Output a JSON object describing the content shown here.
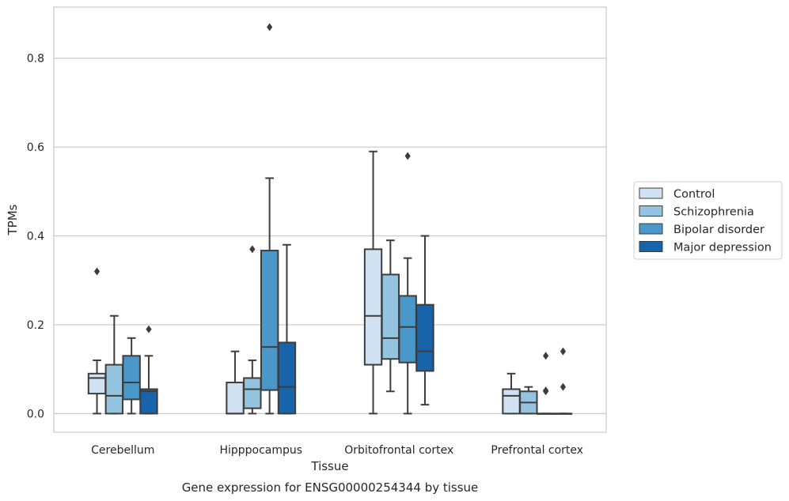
{
  "chart_data": {
    "type": "boxplot",
    "caption": "Gene expression for ENSG00000254344 by tissue",
    "xlabel": "Tissue",
    "ylabel": "TPMs",
    "ylim": [
      -0.042,
      0.915
    ],
    "yticks": [
      0.0,
      0.2,
      0.4,
      0.6,
      0.8
    ],
    "ytick_labels": [
      "0.0",
      "0.2",
      "0.4",
      "0.6",
      "0.8"
    ],
    "grid": "horizontal",
    "legend_position": "right",
    "categories": [
      "Cerebellum",
      "Hipppocampus",
      "Orbitofrontal cortex",
      "Prefrontal cortex"
    ],
    "series": [
      {
        "name": "Control",
        "color": "#d0e1f2",
        "boxes": [
          {
            "whislo": 0.0,
            "q1": 0.045,
            "med": 0.08,
            "q3": 0.09,
            "whishi": 0.12,
            "fliers": [
              0.32
            ]
          },
          {
            "whislo": 0.0,
            "q1": 0.0,
            "med": 0.0,
            "q3": 0.07,
            "whishi": 0.14,
            "fliers": []
          },
          {
            "whislo": 0.0,
            "q1": 0.11,
            "med": 0.22,
            "q3": 0.37,
            "whishi": 0.59,
            "fliers": []
          },
          {
            "whislo": 0.0,
            "q1": 0.0,
            "med": 0.04,
            "q3": 0.055,
            "whishi": 0.09,
            "fliers": []
          }
        ]
      },
      {
        "name": "Schizophrenia",
        "color": "#94c4df",
        "boxes": [
          {
            "whislo": 0.0,
            "q1": 0.0,
            "med": 0.04,
            "q3": 0.11,
            "whishi": 0.22,
            "fliers": []
          },
          {
            "whislo": 0.0,
            "q1": 0.012,
            "med": 0.055,
            "q3": 0.08,
            "whishi": 0.12,
            "fliers": [
              0.37
            ]
          },
          {
            "whislo": 0.05,
            "q1": 0.123,
            "med": 0.17,
            "q3": 0.313,
            "whishi": 0.39,
            "fliers": []
          },
          {
            "whislo": 0.0,
            "q1": 0.0,
            "med": 0.025,
            "q3": 0.05,
            "whishi": 0.06,
            "fliers": []
          }
        ]
      },
      {
        "name": "Bipolar disorder",
        "color": "#4a98c9",
        "boxes": [
          {
            "whislo": 0.0,
            "q1": 0.032,
            "med": 0.07,
            "q3": 0.13,
            "whishi": 0.17,
            "fliers": []
          },
          {
            "whislo": 0.0,
            "q1": 0.053,
            "med": 0.15,
            "q3": 0.367,
            "whishi": 0.53,
            "fliers": [
              0.87
            ]
          },
          {
            "whislo": 0.0,
            "q1": 0.115,
            "med": 0.195,
            "q3": 0.265,
            "whishi": 0.35,
            "fliers": [
              0.58
            ]
          },
          {
            "whislo": 0.0,
            "q1": 0.0,
            "med": 0.0,
            "q3": 0.0,
            "whishi": 0.0,
            "fliers": [
              0.13,
              0.05,
              0.052
            ]
          }
        ]
      },
      {
        "name": "Major depression",
        "color": "#1764ab",
        "boxes": [
          {
            "whislo": 0.0,
            "q1": 0.0,
            "med": 0.05,
            "q3": 0.055,
            "whishi": 0.13,
            "fliers": [
              0.19
            ]
          },
          {
            "whislo": 0.0,
            "q1": 0.0,
            "med": 0.06,
            "q3": 0.16,
            "whishi": 0.38,
            "fliers": []
          },
          {
            "whislo": 0.02,
            "q1": 0.096,
            "med": 0.14,
            "q3": 0.245,
            "whishi": 0.4,
            "fliers": []
          },
          {
            "whislo": 0.0,
            "q1": 0.0,
            "med": 0.0,
            "q3": 0.0,
            "whishi": 0.0,
            "fliers": [
              0.14,
              0.06
            ]
          }
        ]
      }
    ]
  }
}
